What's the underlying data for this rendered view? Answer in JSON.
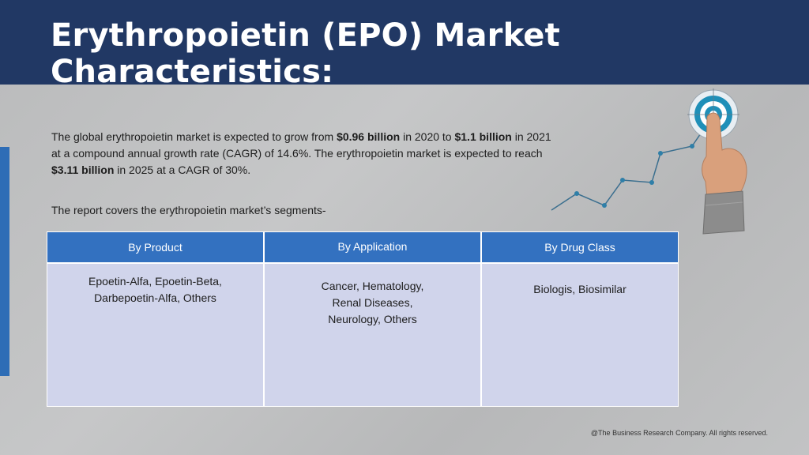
{
  "header": {
    "title": "Erythropoietin (EPO) Market Characteristics:"
  },
  "intro": {
    "p1": "The global erythropoietin market is expected to grow from ",
    "v1": "$0.96 billion",
    "p2": " in 2020 to ",
    "v2": "$1.1 billion",
    "p3": " in 2021 at a compound annual growth rate (CAGR) of 14.6%.  The erythropoietin market is expected to reach ",
    "v3": "$3.11 billion",
    "p4": " in 2025 at a CAGR of 30%."
  },
  "segments_line": "The report covers the erythropoietin market’s segments-",
  "table": {
    "headers": [
      "By Product",
      "By Application",
      "By Drug Class"
    ],
    "cells": [
      [
        "Epoetin-Alfa, Epoetin-Beta,",
        "Darbepoetin-Alfa, Others"
      ],
      [
        "Cancer, Hematology,",
        "Renal Diseases,",
        "Neurology, Others"
      ],
      [
        "Biologis, Biosimilar"
      ]
    ]
  },
  "footer": "@The Business Research Company. All rights reserved.",
  "colors": {
    "header_bg": "#213864",
    "accent": "#2e6db6",
    "table_header": "#3371c0",
    "table_cell": "#d0d4eb",
    "chart_line": "#3b6f8f"
  },
  "icons": [
    "growth-chart-icon",
    "target-icon",
    "pointing-hand-icon"
  ]
}
